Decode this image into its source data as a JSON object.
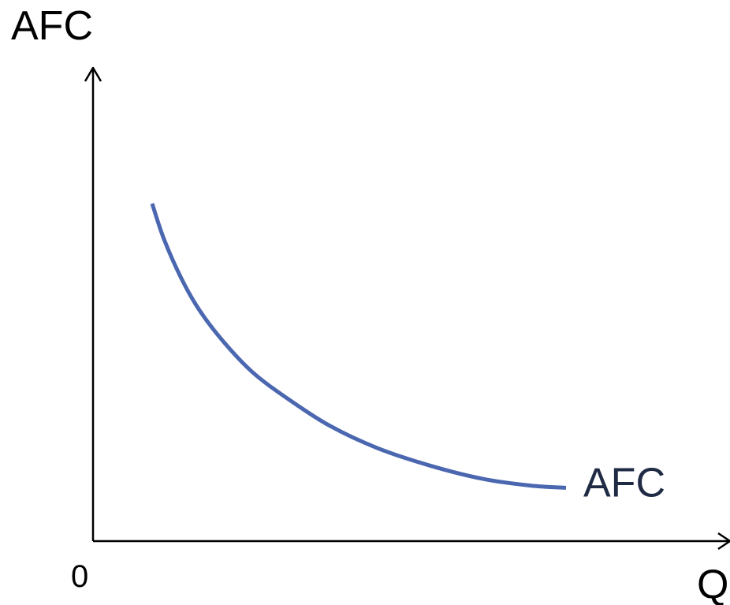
{
  "chart_data": {
    "type": "line",
    "title": "",
    "ylabel": "AFC",
    "xlabel": "Q",
    "origin_label": "0",
    "xlim": [
      0,
      10
    ],
    "ylim": [
      0,
      10
    ],
    "grid": false,
    "x_ticks": [],
    "y_ticks": [],
    "series": [
      {
        "name": "AFC",
        "color": "#4a67b0",
        "x": [
          1.0,
          1.2,
          1.5,
          1.8,
          2.2,
          2.7,
          3.3,
          4.0,
          4.8,
          5.7,
          6.6,
          7.4,
          8.0
        ],
        "y": [
          7.6,
          6.8,
          5.9,
          5.2,
          4.5,
          3.8,
          3.2,
          2.6,
          2.1,
          1.7,
          1.4,
          1.25,
          1.2
        ]
      }
    ]
  },
  "colors": {
    "axis": "#000000",
    "curve": "#4a67b0",
    "curve_label": "#1f2a44"
  }
}
